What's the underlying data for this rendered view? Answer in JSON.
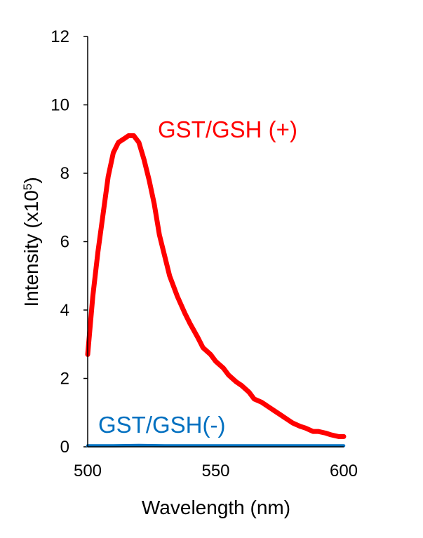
{
  "chart_data": {
    "type": "line",
    "title": "",
    "xlabel": "Wavelength (nm)",
    "ylabel": {
      "base": "Intensity (x10",
      "sup": "5",
      "end": ")"
    },
    "xlim": [
      500,
      600
    ],
    "ylim": [
      0,
      12
    ],
    "xticks": [
      "500",
      "550",
      "600"
    ],
    "yticks": [
      "0",
      "2",
      "4",
      "6",
      "8",
      "10",
      "12"
    ],
    "grid": false,
    "series": [
      {
        "name": "GST/GSH (+)",
        "color": "#ff0000",
        "x": [
          500,
          502,
          504,
          506,
          508,
          510,
          512,
          514,
          516,
          518,
          519,
          520,
          522,
          524,
          526,
          528,
          530,
          532,
          535,
          538,
          540,
          543,
          545,
          548,
          550,
          553,
          555,
          558,
          560,
          563,
          565,
          568,
          570,
          573,
          575,
          578,
          580,
          583,
          585,
          588,
          590,
          593,
          595,
          598,
          600
        ],
        "y": [
          2.7,
          4.4,
          5.7,
          6.8,
          7.9,
          8.6,
          8.9,
          9.0,
          9.1,
          9.1,
          9.0,
          8.9,
          8.4,
          7.8,
          7.1,
          6.2,
          5.6,
          5.0,
          4.4,
          3.9,
          3.6,
          3.2,
          2.9,
          2.7,
          2.5,
          2.3,
          2.1,
          1.9,
          1.8,
          1.6,
          1.4,
          1.3,
          1.2,
          1.05,
          0.95,
          0.8,
          0.7,
          0.6,
          0.55,
          0.45,
          0.45,
          0.4,
          0.35,
          0.3,
          0.3
        ]
      },
      {
        "name": "GST/GSH(-)",
        "color": "#0070c0",
        "x": [
          500,
          510,
          520,
          530,
          540,
          550,
          560,
          570,
          580,
          590,
          600
        ],
        "y": [
          0.03,
          0.03,
          0.04,
          0.03,
          0.03,
          0.03,
          0.03,
          0.03,
          0.03,
          0.03,
          0.03
        ]
      }
    ],
    "annotations": [
      {
        "text": "GST/GSH (+)",
        "color": "#ff0000"
      },
      {
        "text": "GST/GSH(-)",
        "color": "#0070c0"
      }
    ]
  }
}
